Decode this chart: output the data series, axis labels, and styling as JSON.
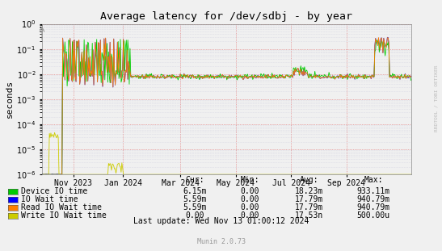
{
  "title": "Average latency for /dev/sdbj - by year",
  "ylabel": "seconds",
  "background_color": "#f0f0f0",
  "plot_bg_color": "#f0f0f0",
  "ylim_min": 1e-06,
  "ylim_max": 1.0,
  "watermark": "RRDTOOL / TOBI OETIKER",
  "munin_version": "Munin 2.0.73",
  "legend": [
    {
      "label": "Device IO time",
      "color": "#00cc00",
      "cur": "6.15m",
      "min": "0.00",
      "avg": "18.23m",
      "max": "933.11m"
    },
    {
      "label": "IO Wait time",
      "color": "#0000ff",
      "cur": "5.59m",
      "min": "0.00",
      "avg": "17.79m",
      "max": "940.79m"
    },
    {
      "label": "Read IO Wait time",
      "color": "#ff7f00",
      "cur": "5.59m",
      "min": "0.00",
      "avg": "17.79m",
      "max": "940.79m"
    },
    {
      "label": "Write IO Wait time",
      "color": "#cccc00",
      "cur": "0.00",
      "min": "0.00",
      "avg": "17.53n",
      "max": "500.00u"
    }
  ],
  "last_update": "Last update: Wed Nov 13 01:00:12 2024",
  "x_tick_labels": [
    "Nov 2023",
    "Jan 2024",
    "Mar 2024",
    "May 2024",
    "Jul 2024",
    "Sep 2024"
  ],
  "x_tick_positions": [
    0.085,
    0.22,
    0.375,
    0.525,
    0.675,
    0.825
  ]
}
